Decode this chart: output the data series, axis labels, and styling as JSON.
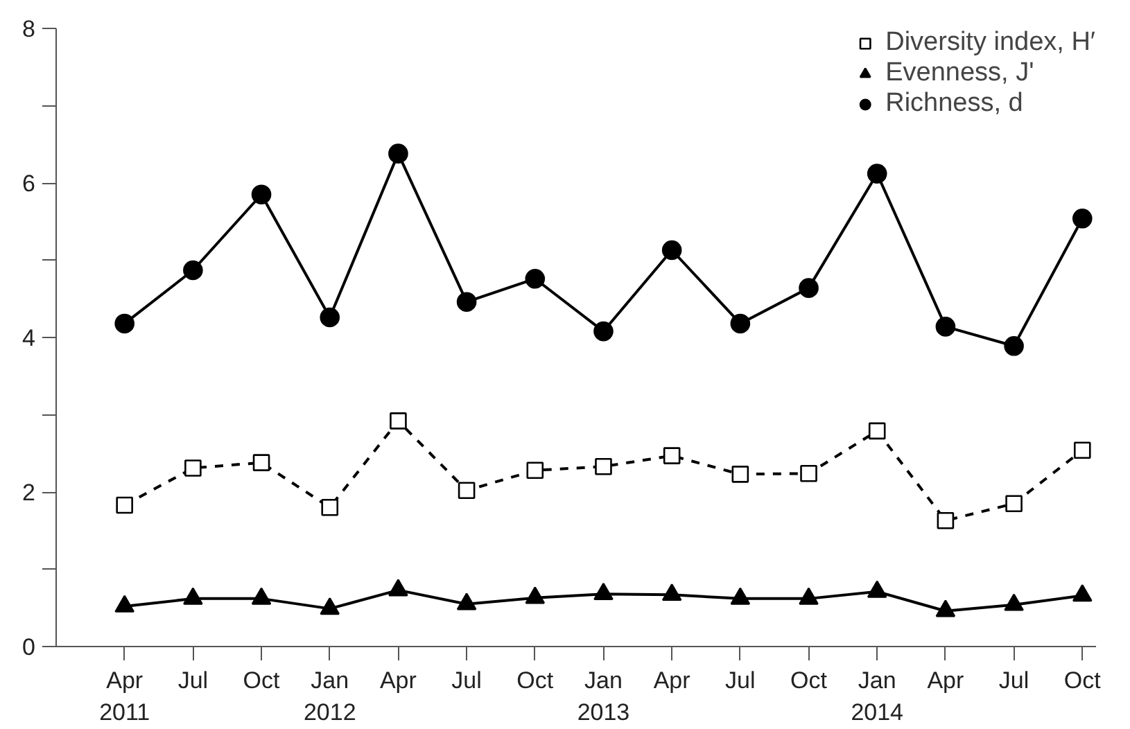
{
  "chart_data": {
    "type": "line",
    "categories": [
      "Apr\n2011",
      "Jul",
      "Oct",
      "Jan\n2012",
      "Apr",
      "Jul",
      "Oct",
      "Jan\n2013",
      "Apr",
      "Jul",
      "Oct",
      "Jan\n2014",
      "Apr",
      "Jul",
      "Oct"
    ],
    "series": [
      {
        "name": "Diversity index, H′",
        "color": "#000000",
        "marker": "square",
        "line_style": "dashed",
        "values": [
          1.83,
          2.31,
          2.38,
          1.8,
          2.92,
          2.02,
          2.28,
          2.33,
          2.47,
          2.23,
          2.24,
          2.79,
          1.63,
          1.85,
          2.54
        ]
      },
      {
        "name": "Evenness, J'",
        "color": "#000000",
        "marker": "triangle",
        "line_style": "solid",
        "values": [
          0.52,
          0.62,
          0.62,
          0.49,
          0.73,
          0.55,
          0.63,
          0.68,
          0.67,
          0.62,
          0.62,
          0.71,
          0.46,
          0.54,
          0.66
        ]
      },
      {
        "name": "Richness, d",
        "color": "#000000",
        "marker": "circle",
        "line_style": "solid",
        "values": [
          4.18,
          4.87,
          5.85,
          4.26,
          6.38,
          4.46,
          4.76,
          4.08,
          5.13,
          4.18,
          4.64,
          6.12,
          4.14,
          3.89,
          5.54
        ]
      }
    ],
    "ylim": [
      0,
      8
    ],
    "yticks": [
      0,
      {
        "value": 1,
        "label": null
      },
      2,
      {
        "value": 3,
        "label": null
      },
      4,
      {
        "value": 5,
        "label": null
      },
      6,
      {
        "value": 7,
        "label": null
      },
      8
    ],
    "grid": false,
    "legend": "top right"
  }
}
